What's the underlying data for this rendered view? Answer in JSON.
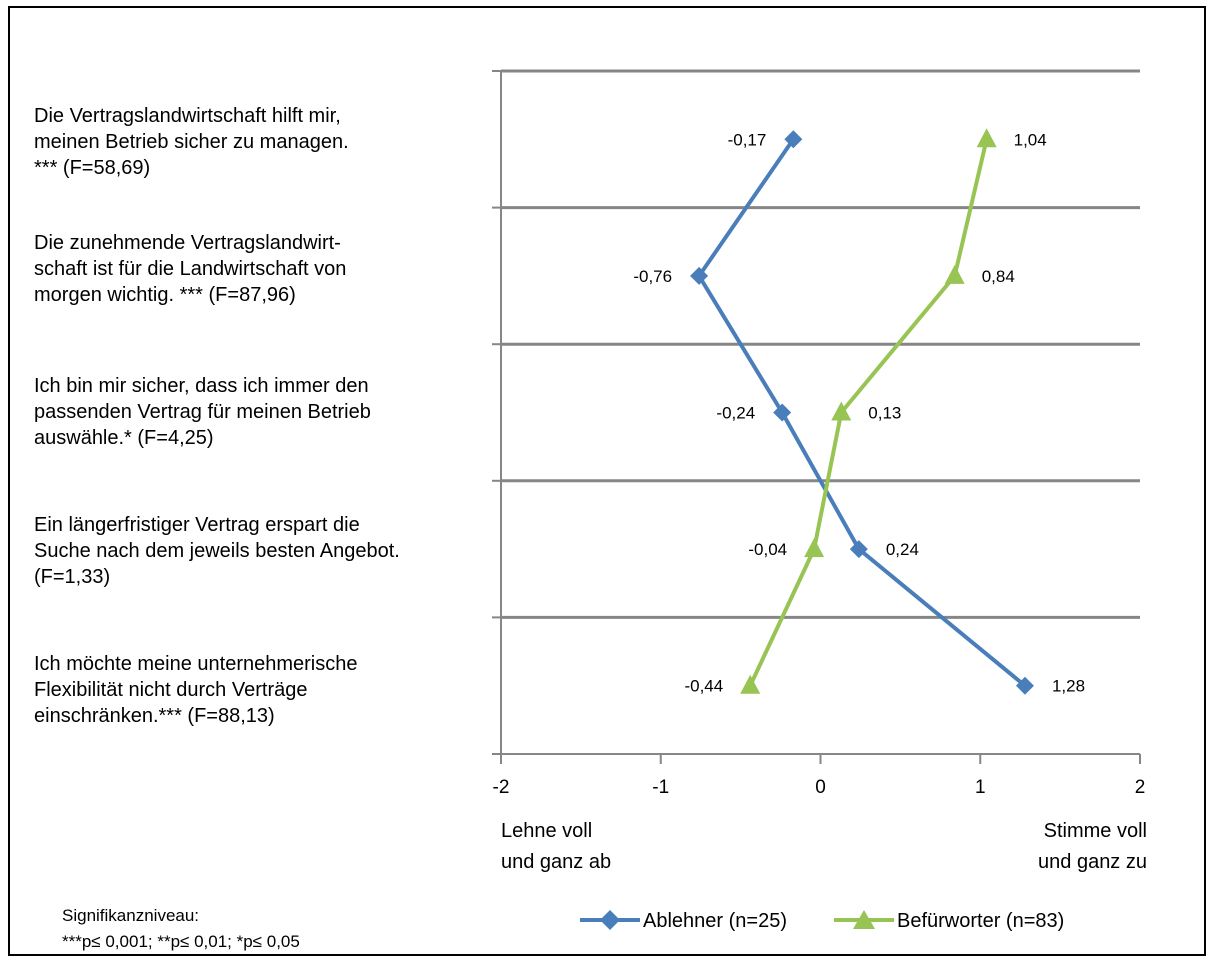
{
  "chart_data": {
    "type": "line",
    "orientation": "horizontal",
    "title": "",
    "categories": [
      "Die Vertragslandwirtschaft hilft mir,\nmeinen Betrieb sicher zu managen.\n*** (F=58,69)",
      "Die zunehmende Vertragslandwirt-\nschaft ist für die Landwirtschaft von\nmorgen wichtig. *** (F=87,96)",
      "Ich bin mir sicher, dass ich immer den\npassenden Vertrag für meinen Betrieb\nauswähle.* (F=4,25)",
      "Ein längerfristiger Vertrag erspart die\nSuche nach dem jeweils besten Angebot.\n(F=1,33)",
      "Ich möchte meine unternehmerische\nFlexibilität nicht durch Verträge\neinschränken.*** (F=88,13)"
    ],
    "series": [
      {
        "name": "Ablehner (n=25)",
        "values": [
          -0.17,
          -0.76,
          -0.24,
          0.24,
          1.28
        ],
        "labels": [
          "-0,17",
          "-0,76",
          "-0,24",
          "0,24",
          "1,28"
        ],
        "color": "#4a7ebb",
        "marker": "diamond"
      },
      {
        "name": "Befürworter (n=83)",
        "values": [
          1.04,
          0.84,
          0.13,
          -0.04,
          -0.44
        ],
        "labels": [
          "1,04",
          "0,84",
          "0,13",
          "-0,04",
          "-0,44"
        ],
        "color": "#98c454",
        "marker": "triangle"
      }
    ],
    "xlim": [
      -2,
      2
    ],
    "xticks": [
      -2,
      -1,
      0,
      1,
      2
    ],
    "xtick_labels": [
      "-2",
      "-1",
      "0",
      "1",
      "2"
    ],
    "x_end_labels": {
      "left": [
        "Lehne voll",
        "und ganz ab"
      ],
      "right": [
        "Stimme voll",
        "und ganz zu"
      ]
    },
    "grid": true,
    "legend_position": "bottom"
  },
  "footnote": [
    "Signifikanzniveau:",
    "***p≤ 0,001; **p≤ 0,01; *p≤ 0,05"
  ],
  "colors": {
    "grid": "#868686",
    "axis": "#868686"
  }
}
